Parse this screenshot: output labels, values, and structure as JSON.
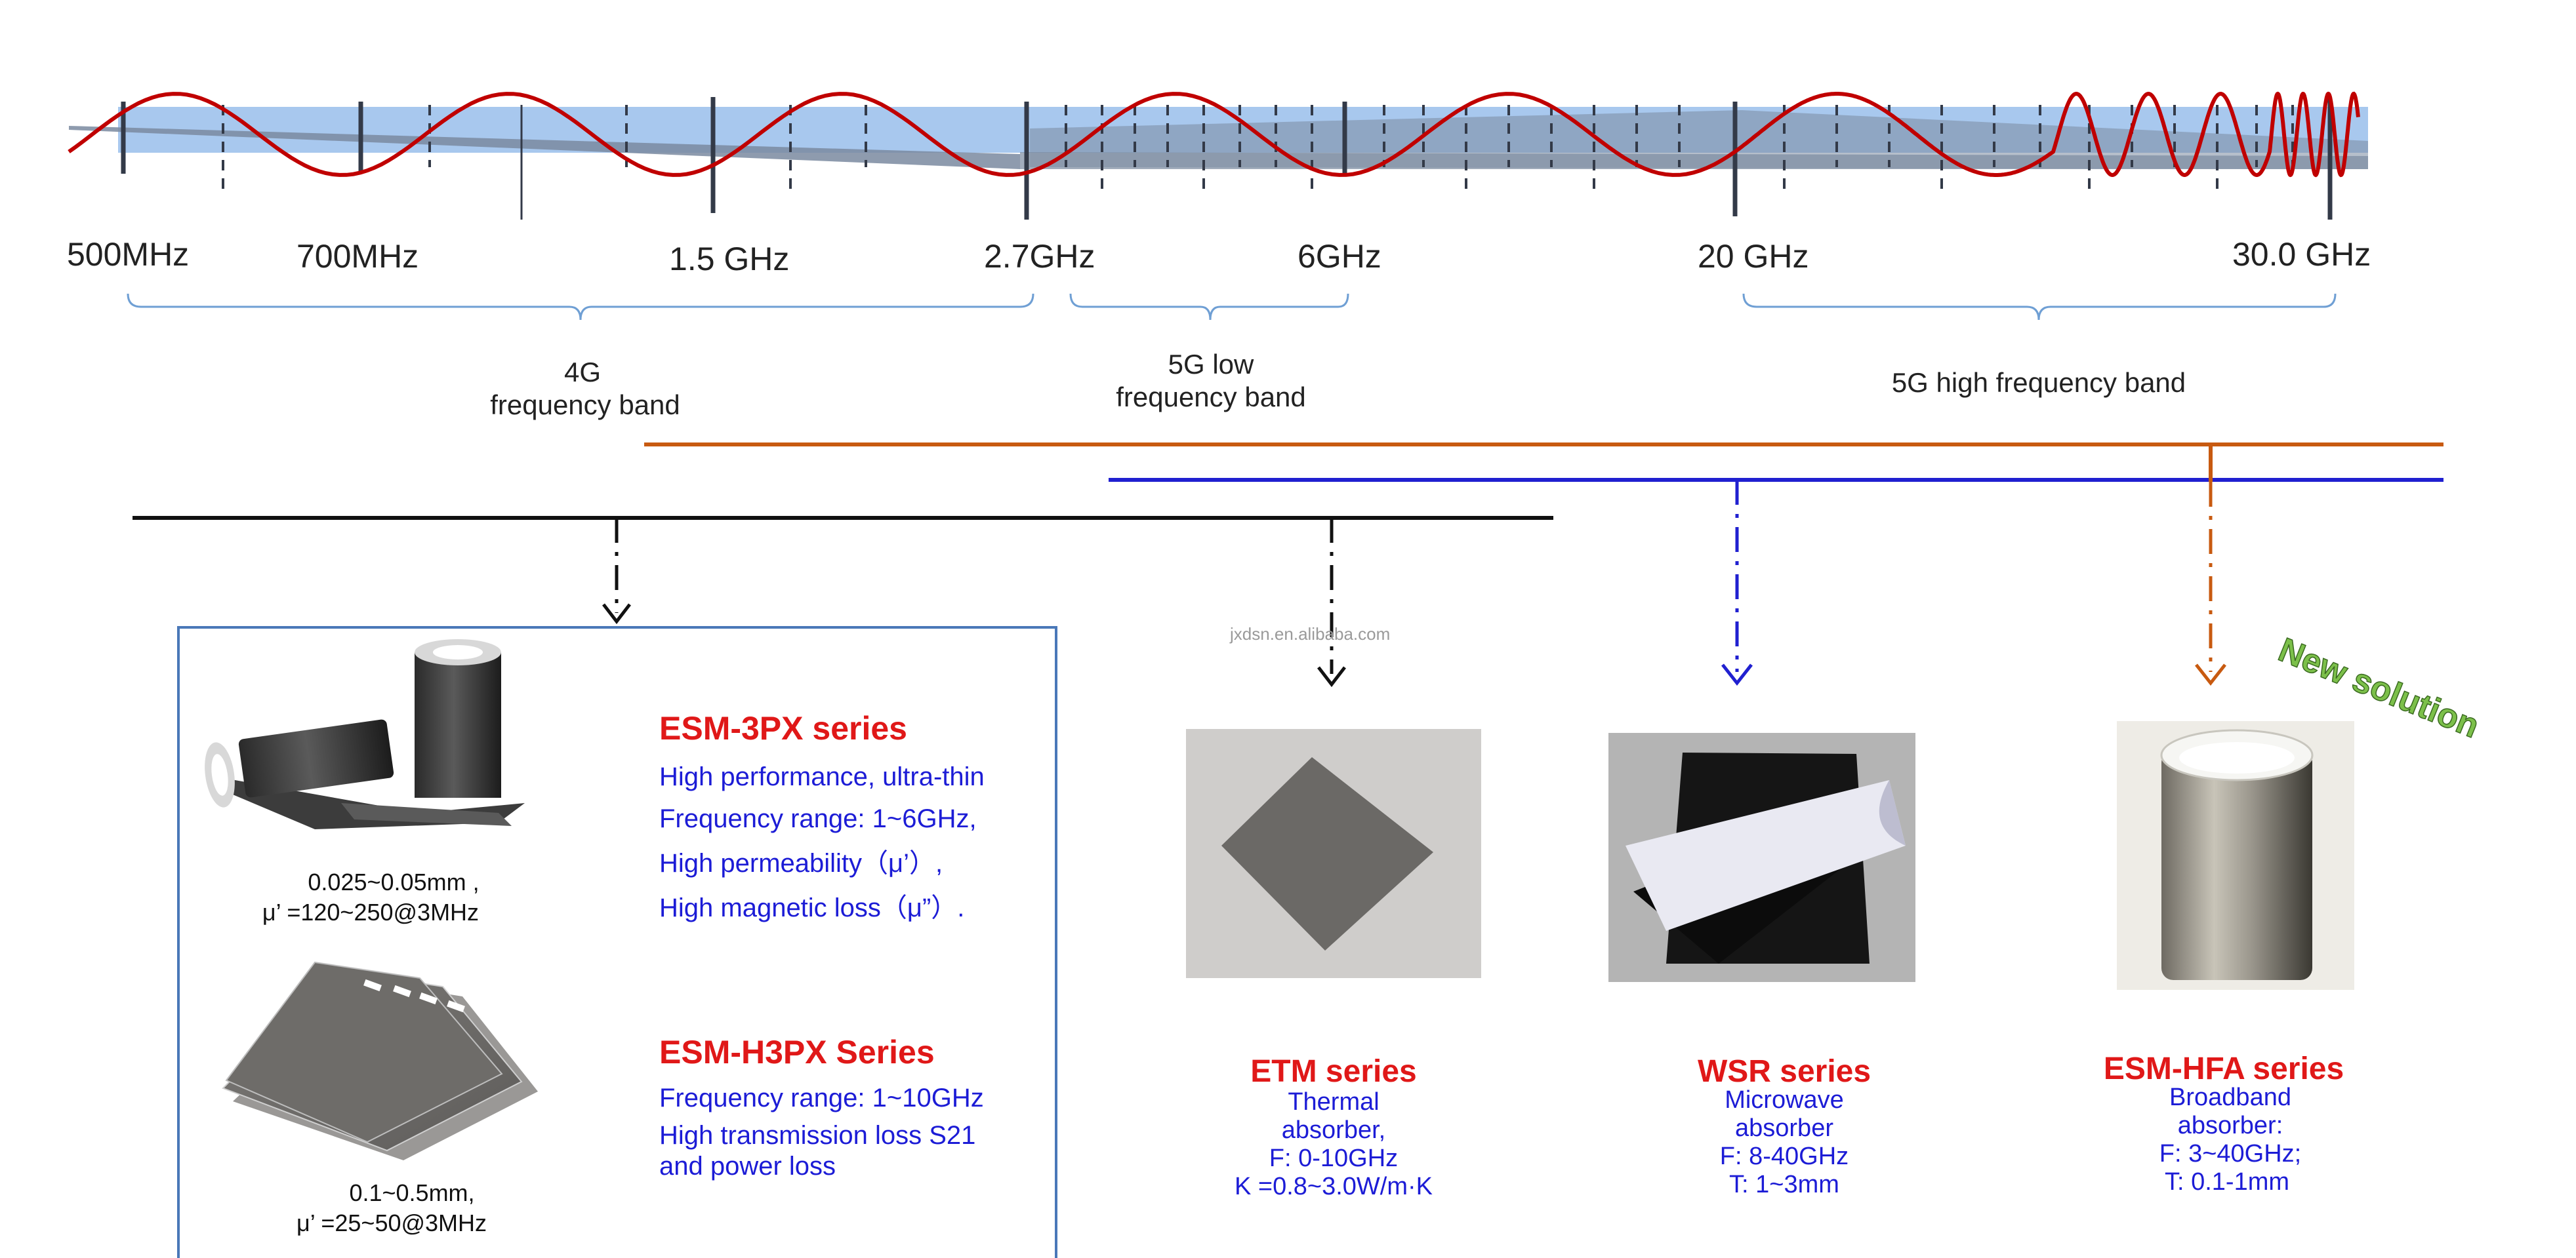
{
  "frequency_axis": {
    "ticks": [
      "500MHz",
      "700MHz",
      "1.5 GHz",
      "2.7GHz",
      "6GHz",
      "20 GHz",
      "30.0 GHz"
    ]
  },
  "bands": {
    "band_4g": {
      "line1": "4G",
      "line2": "frequency band"
    },
    "band_5g_low": {
      "line1": "5G low",
      "line2": "frequency band"
    },
    "band_5g_high": {
      "label": "5G high  frequency band"
    }
  },
  "panel": {
    "esm_3px": {
      "title": "ESM-3PX  series",
      "lines": [
        "High performance, ultra-thin",
        "Frequency range: 1~6GHz,",
        "High permeability（μ’）,",
        "High magnetic loss（μ”）."
      ],
      "spec1": "0.025~0.05mm ,",
      "spec2": "μ’ =120~250@3MHz"
    },
    "esm_h3px": {
      "title": "ESM-H3PX Series",
      "lines": [
        "Frequency range: 1~10GHz",
        "High transmission loss S21",
        "and power loss"
      ],
      "spec1": "0.1~0.5mm,",
      "spec2": "μ’ =25~50@3MHz"
    }
  },
  "cards": {
    "etm": {
      "title": "ETM  series",
      "lines": [
        "Thermal",
        "absorber,",
        "F: 0-10GHz",
        "K =0.8~3.0W/m·K"
      ]
    },
    "wsr": {
      "title": "WSR  series",
      "lines": [
        "Microwave",
        "absorber",
        "F:  8-40GHz",
        "T:  1~3mm"
      ]
    },
    "hfa": {
      "title": "ESM-HFA  series",
      "lines": [
        "Broadband",
        "absorber:",
        "F:  3~40GHz;",
        "T:  0.1-1mm"
      ]
    }
  },
  "badge": "New solution",
  "watermark": "jxdsn.en.alibaba.com",
  "icons": [
    "sine-wave",
    "dashed-arrow",
    "black-roll-image",
    "black-sheets-image",
    "grey-square-sheet-image",
    "peeled-sheet-image",
    "silver-roll-image"
  ],
  "colors": {
    "wave": "#c00000",
    "band_fill": "#a8c8ee",
    "shade": "#7a8aa0",
    "title_red": "#e01818",
    "desc_blue": "#1c1cd6",
    "orange_line": "#c85a10",
    "blue_line": "#2020d0",
    "panel_border": "#4a78b8",
    "badge_green": "#7cc04a"
  }
}
